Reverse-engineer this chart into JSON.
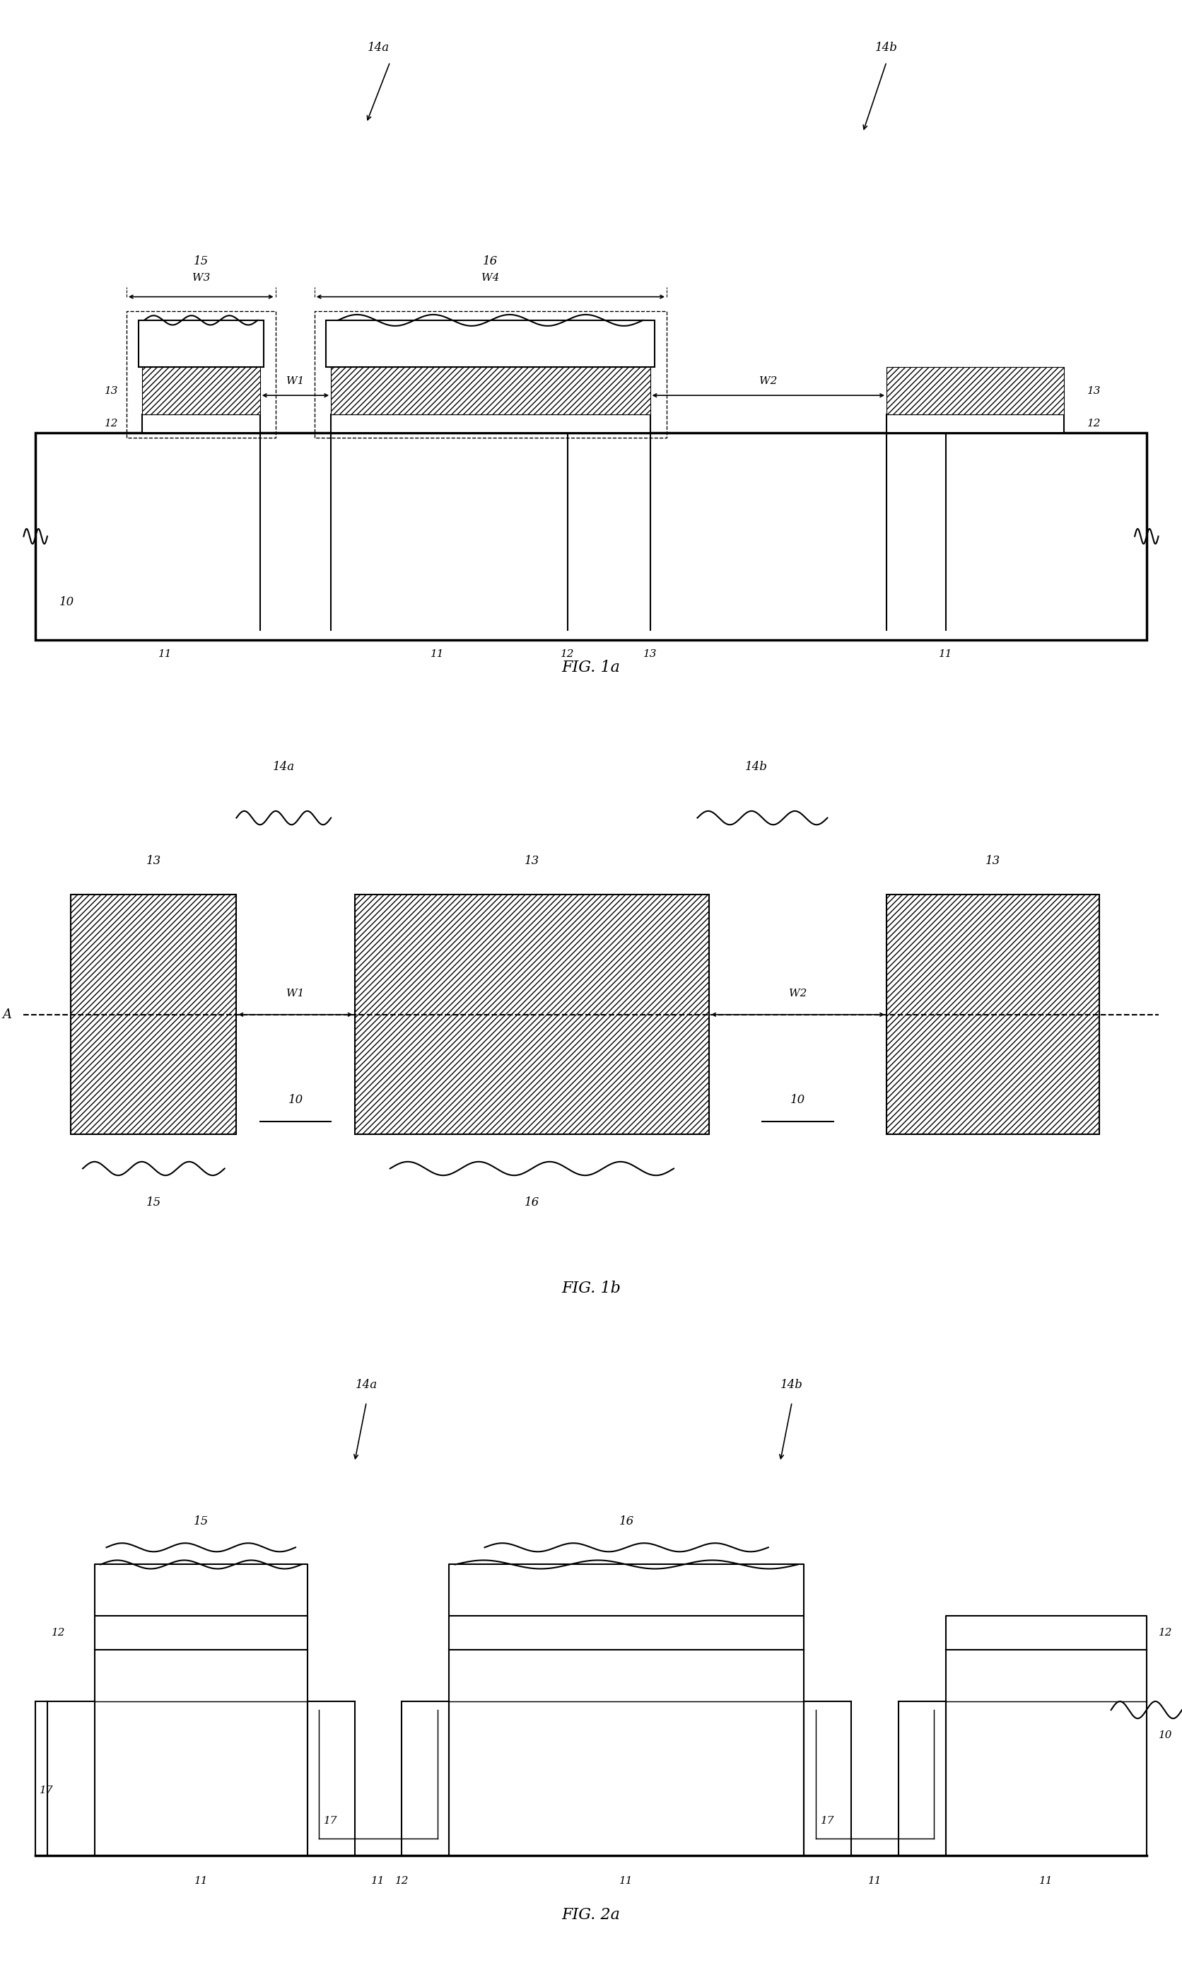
{
  "background_color": "#ffffff",
  "lw": 1.5,
  "lw_thick": 2.5,
  "fig1a_label": "FIG. 1a",
  "fig1b_label": "FIG. 1b",
  "fig2a_label": "FIG. 2a"
}
